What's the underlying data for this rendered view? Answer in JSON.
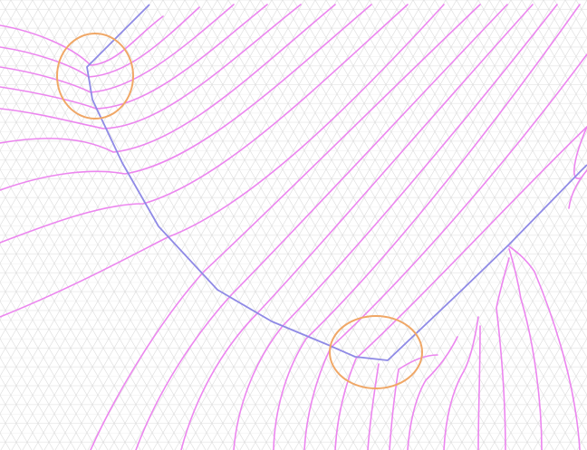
{
  "colors": {
    "background": "#ffffff",
    "grid": "#dcdcdc",
    "contour": "#ec86ef",
    "path": "#8f8ae6",
    "highlight": "#f0a766"
  },
  "elements": {
    "grid": "triangular-grid",
    "contours": "contour-lines",
    "path": "piecewise-path",
    "highlights": [
      "highlight-circle-top-left",
      "highlight-circle-bottom-center"
    ]
  }
}
